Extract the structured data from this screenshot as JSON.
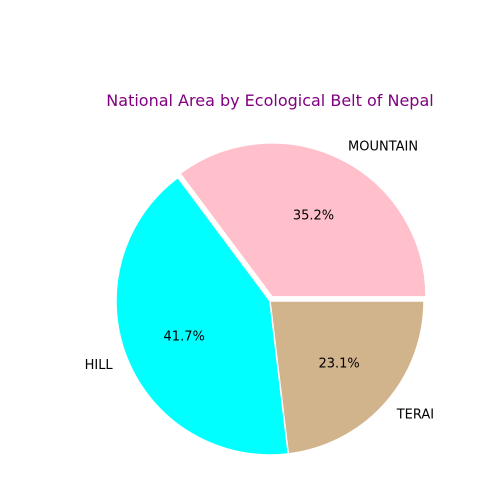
{
  "chart_data": {
    "type": "pie",
    "title": "National Area by Ecological Belt of Nepal",
    "title_color": "#800080",
    "categories": [
      "MOUNTAIN",
      "HILL",
      "TERAI"
    ],
    "values": [
      35.2,
      41.7,
      23.1
    ],
    "pct_labels": [
      "35.2%",
      "41.7%",
      "23.1%"
    ],
    "colors": [
      "#ffc0cb",
      "#00ffff",
      "#d2b48c"
    ],
    "explode": [
      0.03,
      0,
      0
    ],
    "start_angle_deg": 0,
    "direction": "counterclockwise",
    "legend": "none"
  }
}
